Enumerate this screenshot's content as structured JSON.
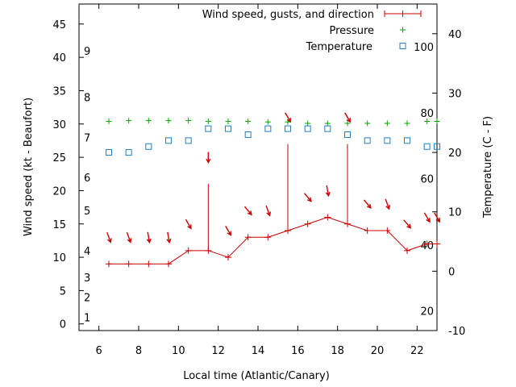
{
  "chart_data": {
    "type": "line",
    "xlabel": "Local time (Atlantic/Canary)",
    "ylabel_left": "Wind speed (kt - Beaufort)",
    "ylabel_right": "Temperature (C - F)",
    "xlim": [
      5,
      23
    ],
    "ylim_left": [
      -1,
      48
    ],
    "ylim_right": [
      -10,
      45
    ],
    "x_ticks": [
      6,
      8,
      10,
      12,
      14,
      16,
      18,
      20,
      22
    ],
    "y_ticks_left": [
      0,
      5,
      10,
      15,
      20,
      25,
      30,
      35,
      40,
      45
    ],
    "y_ticks_right": [
      -10,
      0,
      10,
      20,
      30,
      40
    ],
    "beaufort_labels": [
      {
        "label": "1",
        "kt": 1
      },
      {
        "label": "2",
        "kt": 4
      },
      {
        "label": "3",
        "kt": 7
      },
      {
        "label": "4",
        "kt": 11
      },
      {
        "label": "5",
        "kt": 17
      },
      {
        "label": "6",
        "kt": 22
      },
      {
        "label": "7",
        "kt": 28
      },
      {
        "label": "8",
        "kt": 34
      },
      {
        "label": "9",
        "kt": 41
      }
    ],
    "fahrenheit_labels": [
      {
        "label": "20",
        "c": -6.7
      },
      {
        "label": "40",
        "c": 4.4
      },
      {
        "label": "60",
        "c": 15.6
      },
      {
        "label": "80",
        "c": 26.7
      },
      {
        "label": "100",
        "c": 37.8
      }
    ],
    "legend": [
      "Wind speed, gusts, and direction",
      "Pressure",
      "Temperature"
    ],
    "legend_position": "top-right",
    "colors": {
      "wind": "#cc0000",
      "pressure": "#00aa00",
      "temperature": "#1f7fbf"
    },
    "series": [
      {
        "name": "Wind speed, gusts, and direction",
        "x": [
          6.5,
          7.5,
          8.5,
          9.5,
          10.5,
          11.5,
          12.5,
          13.5,
          14.5,
          15.5,
          16.5,
          17.5,
          18.5,
          19.5,
          20.5,
          21.5,
          22.5,
          23
        ],
        "values": [
          9,
          9,
          9,
          9,
          11,
          11,
          10,
          13,
          13,
          14,
          15,
          16,
          15,
          14,
          14,
          11,
          12,
          12
        ],
        "gusts": [
          null,
          null,
          null,
          null,
          null,
          21,
          null,
          null,
          null,
          27,
          null,
          null,
          27,
          null,
          null,
          null,
          null,
          null
        ],
        "direction_deg": [
          340,
          340,
          350,
          350,
          330,
          360,
          330,
          320,
          340,
          330,
          320,
          350,
          330,
          320,
          340,
          320,
          330,
          330
        ],
        "arrow_kt": [
          13,
          13,
          13,
          13,
          15,
          25,
          14,
          17,
          17,
          31,
          19,
          20,
          31,
          18,
          18,
          15,
          16,
          16
        ]
      },
      {
        "name": "Pressure",
        "x": [
          6.5,
          7.5,
          8.5,
          9.5,
          10.5,
          11.5,
          12.5,
          13.5,
          14.5,
          15.5,
          16.5,
          17.5,
          18.5,
          19.5,
          20.5,
          21.5,
          22.5,
          23
        ],
        "values_kt_scale": [
          30.4,
          30.5,
          30.5,
          30.5,
          30.5,
          30.4,
          30.4,
          30.4,
          30.3,
          30.3,
          30.1,
          30.1,
          30.1,
          30.1,
          30.1,
          30.1,
          30.4,
          30.4
        ]
      },
      {
        "name": "Temperature",
        "x": [
          6.5,
          7.5,
          8.5,
          9.5,
          10.5,
          11.5,
          12.5,
          13.5,
          14.5,
          15.5,
          16.5,
          17.5,
          18.5,
          19.5,
          20.5,
          21.5,
          22.5,
          23
        ],
        "values": [
          20,
          20,
          21,
          22,
          22,
          24,
          24,
          23,
          24,
          24,
          24,
          24,
          23,
          22,
          22,
          22,
          21,
          21
        ]
      }
    ]
  }
}
